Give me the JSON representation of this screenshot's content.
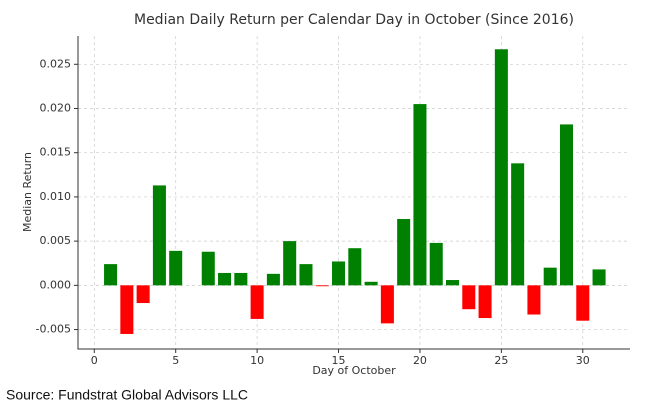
{
  "chart_data": {
    "type": "bar",
    "title": "Median Daily Return per Calendar Day in October (Since 2016)",
    "x_label": "Day of October",
    "y_label": "Median Return",
    "source": "Source: Fundstrat Global Advisors LLC",
    "x": [
      1,
      2,
      3,
      4,
      5,
      7,
      8,
      9,
      10,
      11,
      12,
      13,
      14,
      15,
      16,
      17,
      18,
      19,
      20,
      21,
      22,
      23,
      24,
      25,
      26,
      27,
      28,
      29,
      30,
      31
    ],
    "values": [
      0.0024,
      -0.0055,
      -0.002,
      0.0113,
      0.0039,
      0.0038,
      0.0014,
      0.0014,
      -0.0038,
      0.0013,
      0.005,
      0.0024,
      -0.0001,
      0.0027,
      0.0042,
      0.0004,
      -0.0043,
      0.0075,
      0.0205,
      0.0048,
      0.0006,
      -0.0027,
      -0.0037,
      0.0267,
      0.0138,
      -0.0033,
      0.002,
      0.0182,
      -0.004,
      0.0018
    ],
    "positive_color": "#008000",
    "negative_color": "#ff0000",
    "xlim": [
      -1,
      32.9
    ],
    "xticks": [
      0,
      5,
      10,
      15,
      20,
      25,
      30
    ],
    "ylim": [
      -0.0072,
      0.0282
    ],
    "yticks": [
      -0.005,
      {
        "value": 0,
        "label": "0.000"
      },
      0.005,
      {
        "value": 0.01,
        "label": "0.010"
      },
      0.015,
      {
        "value": 0.02,
        "label": "0.020"
      },
      0.025
    ],
    "grid": true
  }
}
